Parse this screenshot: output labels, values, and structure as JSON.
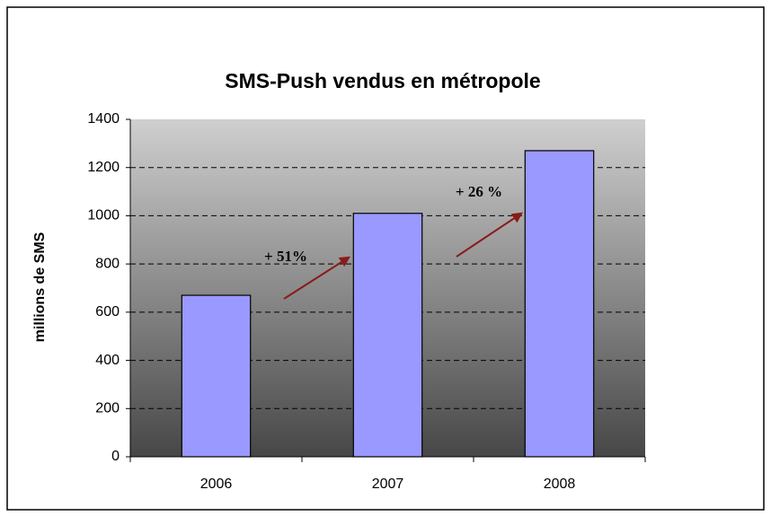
{
  "chart_data": {
    "type": "bar",
    "title": "SMS-Push vendus en métropole",
    "y_label": "millions de SMS",
    "categories": [
      "2006",
      "2007",
      "2008"
    ],
    "values": [
      670,
      1010,
      1270
    ],
    "color": "#9999ff",
    "ylim": [
      0,
      1400
    ],
    "yticks": [
      0,
      200,
      400,
      600,
      800,
      1000,
      1200,
      1400
    ],
    "grid": true,
    "annotations": [
      {
        "text": "+ 51%",
        "color": "#8b1a1a"
      },
      {
        "text": "+ 26 %",
        "color": "#8b1a1a"
      }
    ]
  }
}
